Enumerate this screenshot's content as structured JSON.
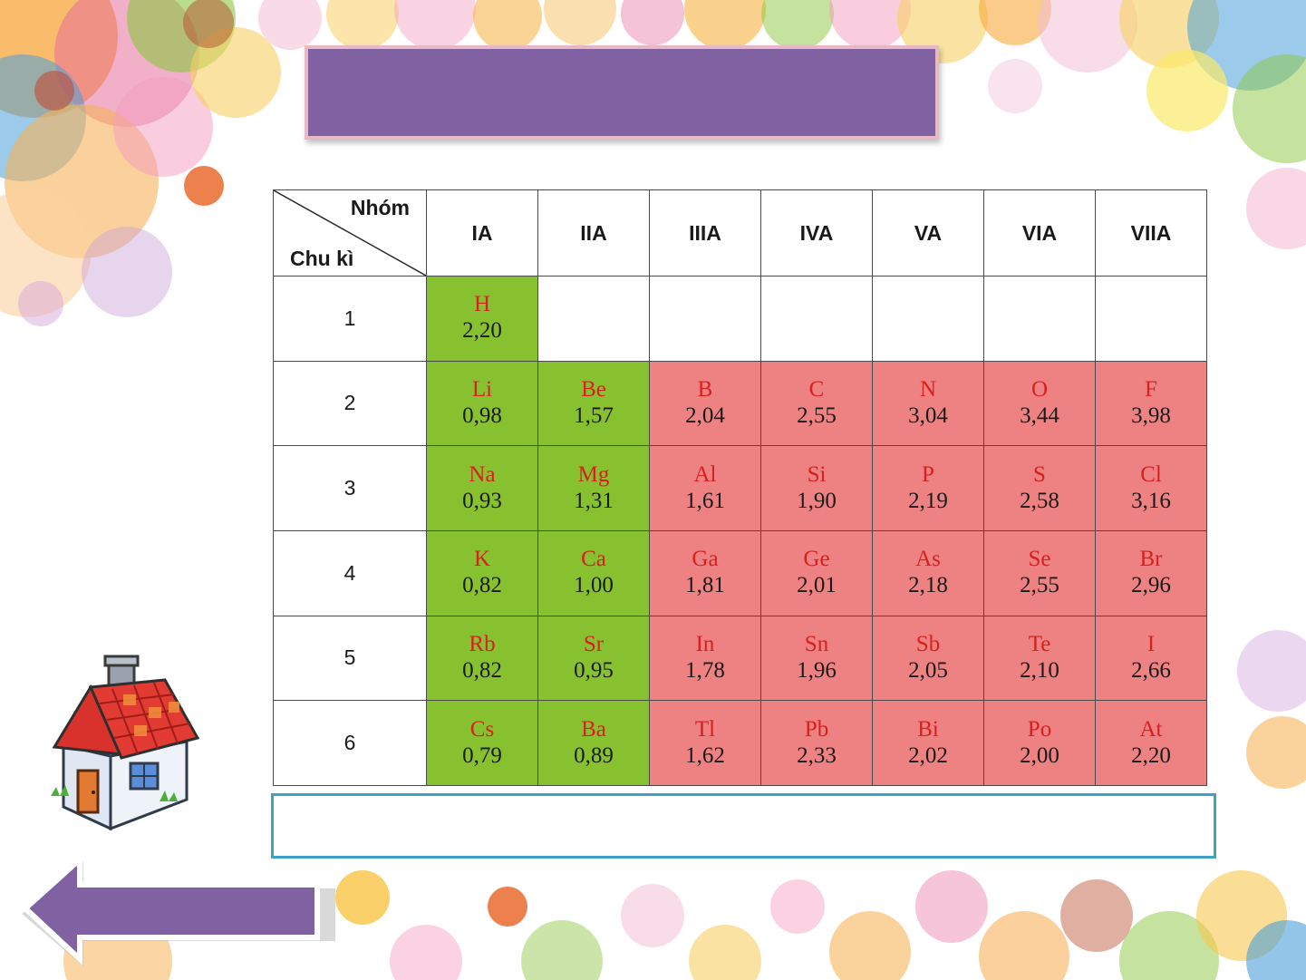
{
  "table": {
    "corner_top": "Nhóm",
    "corner_bottom": "Chu kì",
    "groups": [
      "IA",
      "IIA",
      "IIIA",
      "IVA",
      "VA",
      "VIA",
      "VIIA"
    ],
    "rows": [
      {
        "period": "1",
        "cells": [
          {
            "symbol": "H",
            "en": "2,20",
            "color": "green"
          },
          null,
          null,
          null,
          null,
          null,
          null
        ]
      },
      {
        "period": "2",
        "cells": [
          {
            "symbol": "Li",
            "en": "0,98",
            "color": "green"
          },
          {
            "symbol": "Be",
            "en": "1,57",
            "color": "green"
          },
          {
            "symbol": "B",
            "en": "2,04",
            "color": "red"
          },
          {
            "symbol": "C",
            "en": "2,55",
            "color": "red"
          },
          {
            "symbol": "N",
            "en": "3,04",
            "color": "red"
          },
          {
            "symbol": "O",
            "en": "3,44",
            "color": "red"
          },
          {
            "symbol": "F",
            "en": "3,98",
            "color": "red"
          }
        ]
      },
      {
        "period": "3",
        "cells": [
          {
            "symbol": "Na",
            "en": "0,93",
            "color": "green"
          },
          {
            "symbol": "Mg",
            "en": "1,31",
            "color": "green"
          },
          {
            "symbol": "Al",
            "en": "1,61",
            "color": "red"
          },
          {
            "symbol": "Si",
            "en": "1,90",
            "color": "red"
          },
          {
            "symbol": "P",
            "en": "2,19",
            "color": "red"
          },
          {
            "symbol": "S",
            "en": "2,58",
            "color": "red"
          },
          {
            "symbol": "Cl",
            "en": "3,16",
            "color": "red"
          }
        ]
      },
      {
        "period": "4",
        "cells": [
          {
            "symbol": "K",
            "en": "0,82",
            "color": "green"
          },
          {
            "symbol": "Ca",
            "en": "1,00",
            "color": "green"
          },
          {
            "symbol": "Ga",
            "en": "1,81",
            "color": "red"
          },
          {
            "symbol": "Ge",
            "en": "2,01",
            "color": "red"
          },
          {
            "symbol": "As",
            "en": "2,18",
            "color": "red"
          },
          {
            "symbol": "Se",
            "en": "2,55",
            "color": "red"
          },
          {
            "symbol": "Br",
            "en": "2,96",
            "color": "red"
          }
        ]
      },
      {
        "period": "5",
        "cells": [
          {
            "symbol": "Rb",
            "en": "0,82",
            "color": "green"
          },
          {
            "symbol": "Sr",
            "en": "0,95",
            "color": "green"
          },
          {
            "symbol": "In",
            "en": "1,78",
            "color": "red"
          },
          {
            "symbol": "Sn",
            "en": "1,96",
            "color": "red"
          },
          {
            "symbol": "Sb",
            "en": "2,05",
            "color": "red"
          },
          {
            "symbol": "Te",
            "en": "2,10",
            "color": "red"
          },
          {
            "symbol": "I",
            "en": "2,66",
            "color": "red"
          }
        ]
      },
      {
        "period": "6",
        "cells": [
          {
            "symbol": "Cs",
            "en": "0,79",
            "color": "green"
          },
          {
            "symbol": "Ba",
            "en": "0,89",
            "color": "green"
          },
          {
            "symbol": "Tl",
            "en": "1,62",
            "color": "red"
          },
          {
            "symbol": "Pb",
            "en": "2,33",
            "color": "red"
          },
          {
            "symbol": "Bi",
            "en": "2,02",
            "color": "red"
          },
          {
            "symbol": "Po",
            "en": "2,00",
            "color": "red"
          },
          {
            "symbol": "At",
            "en": "2,20",
            "color": "red"
          }
        ]
      }
    ]
  },
  "colors": {
    "title_banner": "#8062a3",
    "title_border": "#e7b9c7",
    "metal_cell": "#88c12f",
    "nonmetal_cell": "#ee8182",
    "symbol_text": "#d8201f",
    "answer_border": "#40a0c8",
    "back_arrow": "#8062a3"
  },
  "icons": {
    "home": "house-icon",
    "back": "left-arrow-icon"
  }
}
